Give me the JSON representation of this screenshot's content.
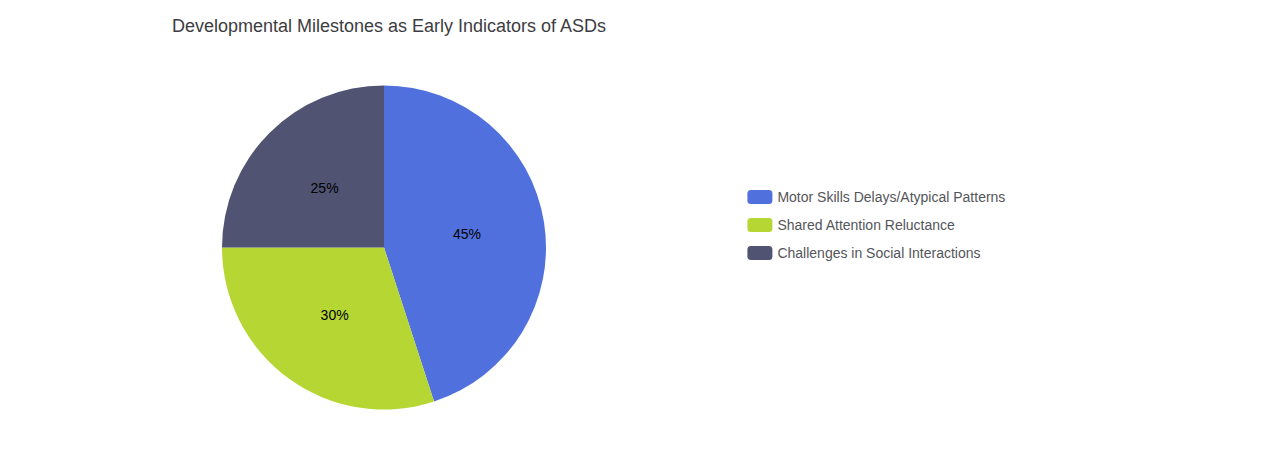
{
  "chart_data": {
    "type": "pie",
    "title": "Developmental Milestones as Early Indicators of ASDs",
    "categories": [
      "Motor Skills Delays/Atypical Patterns",
      "Shared Attention Reluctance",
      "Challenges in Social Interactions"
    ],
    "values": [
      45,
      30,
      25
    ],
    "value_labels": [
      "45%",
      "30%",
      "25%"
    ],
    "data_labels": true,
    "legend": "right"
  }
}
